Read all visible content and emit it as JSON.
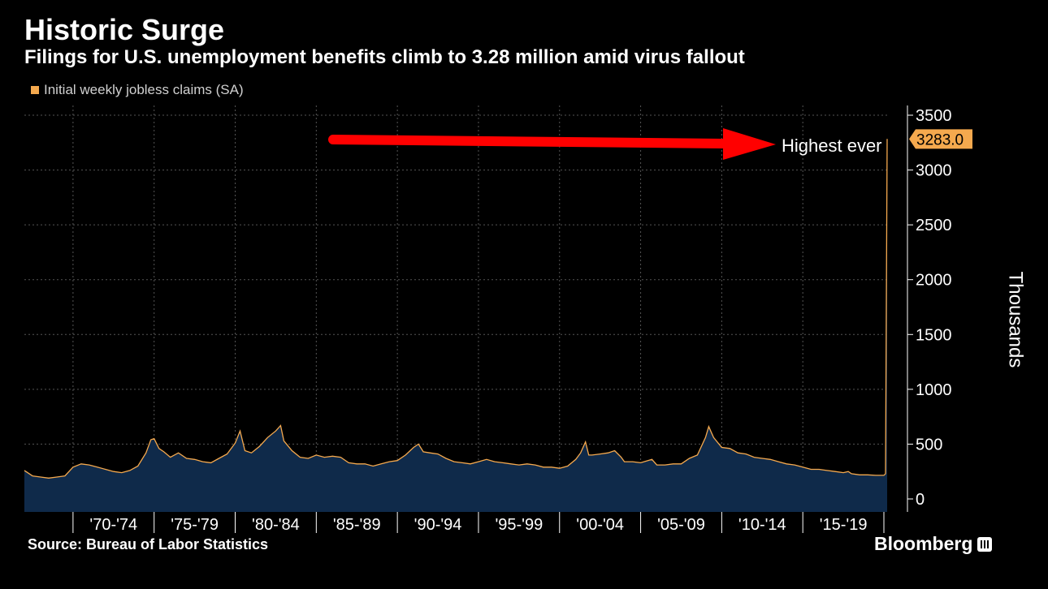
{
  "header": {
    "title": "Historic Surge",
    "subtitle": "Filings for U.S. unemployment benefits climb to 3.28 million amid virus fallout"
  },
  "legend": {
    "label": "Initial weekly jobless claims (SA)"
  },
  "footer": {
    "source": "Source: Bureau of Labor Statistics",
    "brand": "Bloomberg"
  },
  "annotation": {
    "text": "Highest ever",
    "value_label": "3283.0"
  },
  "colors": {
    "line": "#f5a94e",
    "area": "#0f2a4a",
    "arrow": "#ff0000",
    "grid": "#555555",
    "background": "#000000"
  },
  "chart_data": {
    "type": "area",
    "ylabel": "Thousands",
    "ylim": [
      0,
      3500
    ],
    "yticks": [
      0,
      500,
      1000,
      1500,
      2000,
      2500,
      3000,
      3500
    ],
    "xlim": [
      1967,
      2020.3
    ],
    "x_tick_labels": [
      "'70-'74",
      "'75-'79",
      "'80-'84",
      "'85-'89",
      "'90-'94",
      "'95-'99",
      "'00-'04",
      "'05-'09",
      "'10-'14",
      "'15-'19"
    ],
    "x_tick_ranges": [
      [
        1970,
        1975
      ],
      [
        1975,
        1980
      ],
      [
        1980,
        1985
      ],
      [
        1985,
        1990
      ],
      [
        1990,
        1995
      ],
      [
        1995,
        2000
      ],
      [
        2000,
        2005
      ],
      [
        2005,
        2010
      ],
      [
        2010,
        2015
      ],
      [
        2015,
        2020
      ]
    ],
    "grid": true,
    "legend_position": "top-left",
    "series": [
      {
        "name": "Initial weekly jobless claims (SA)",
        "x": [
          1967.0,
          1967.5,
          1968.0,
          1968.5,
          1969.0,
          1969.5,
          1970.0,
          1970.5,
          1971.0,
          1971.5,
          1972.0,
          1972.5,
          1973.0,
          1973.5,
          1974.0,
          1974.5,
          1974.8,
          1975.0,
          1975.3,
          1975.6,
          1976.0,
          1976.5,
          1977.0,
          1977.5,
          1978.0,
          1978.5,
          1979.0,
          1979.5,
          1980.0,
          1980.3,
          1980.6,
          1981.0,
          1981.5,
          1982.0,
          1982.5,
          1982.8,
          1983.0,
          1983.5,
          1984.0,
          1984.5,
          1985.0,
          1985.5,
          1986.0,
          1986.5,
          1987.0,
          1987.5,
          1988.0,
          1988.5,
          1989.0,
          1989.5,
          1990.0,
          1990.5,
          1991.0,
          1991.3,
          1991.6,
          1992.0,
          1992.5,
          1993.0,
          1993.5,
          1994.0,
          1994.5,
          1995.0,
          1995.5,
          1996.0,
          1996.5,
          1997.0,
          1997.5,
          1998.0,
          1998.5,
          1999.0,
          1999.5,
          2000.0,
          2000.5,
          2001.0,
          2001.3,
          2001.6,
          2001.8,
          2002.0,
          2002.5,
          2003.0,
          2003.4,
          2003.8,
          2004.0,
          2004.5,
          2005.0,
          2005.7,
          2006.0,
          2006.5,
          2007.0,
          2007.5,
          2008.0,
          2008.5,
          2009.0,
          2009.2,
          2009.5,
          2010.0,
          2010.5,
          2011.0,
          2011.5,
          2012.0,
          2012.5,
          2013.0,
          2013.5,
          2014.0,
          2014.5,
          2015.0,
          2015.5,
          2016.0,
          2016.5,
          2017.0,
          2017.5,
          2017.8,
          2018.0,
          2018.5,
          2019.0,
          2019.5,
          2020.0,
          2020.1,
          2020.2
        ],
        "values": [
          260,
          210,
          200,
          190,
          200,
          210,
          290,
          320,
          310,
          290,
          270,
          250,
          240,
          260,
          300,
          420,
          540,
          550,
          460,
          430,
          380,
          420,
          370,
          360,
          340,
          330,
          370,
          410,
          510,
          620,
          440,
          420,
          480,
          560,
          620,
          670,
          530,
          440,
          380,
          370,
          400,
          380,
          390,
          380,
          330,
          320,
          320,
          300,
          320,
          340,
          350,
          400,
          470,
          500,
          430,
          420,
          410,
          370,
          340,
          330,
          320,
          340,
          360,
          340,
          330,
          320,
          310,
          320,
          310,
          290,
          290,
          280,
          300,
          360,
          420,
          520,
          400,
          400,
          410,
          420,
          440,
          380,
          340,
          340,
          330,
          360,
          310,
          310,
          320,
          320,
          370,
          400,
          560,
          660,
          560,
          470,
          460,
          420,
          410,
          380,
          370,
          360,
          340,
          320,
          310,
          290,
          270,
          270,
          260,
          250,
          240,
          250,
          230,
          220,
          220,
          215,
          215,
          230,
          3283
        ]
      }
    ]
  }
}
